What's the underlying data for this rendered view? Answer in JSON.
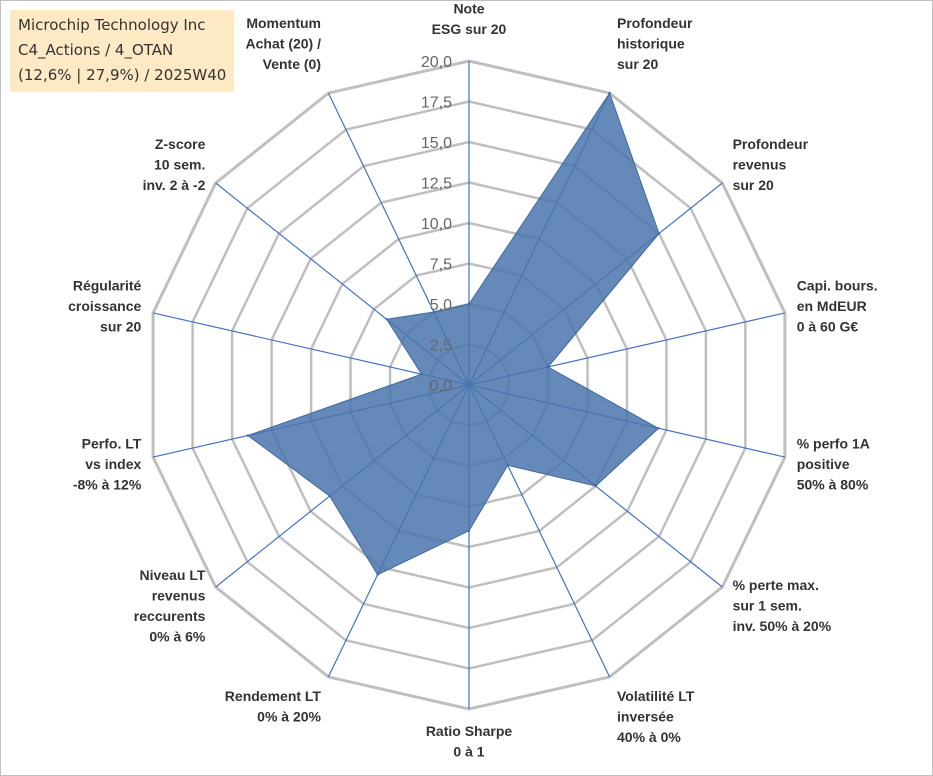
{
  "info": {
    "line1": "Microchip Technology Inc",
    "line2": "C4_Actions / 4_OTAN",
    "line3": "(12,6% | 27,9%) / 2025W40"
  },
  "chart_data": {
    "type": "radar",
    "title": "",
    "rmin": 0,
    "rmax": 20,
    "ticks": [
      0,
      2.5,
      5,
      7.5,
      10,
      12.5,
      15,
      17.5,
      20
    ],
    "tick_labels": [
      "0,0",
      "2,5",
      "5,0",
      "7,5",
      "10,0",
      "12,5",
      "15,0",
      "17,5",
      "20,0"
    ],
    "axes": [
      {
        "label": [
          "Note",
          "ESG sur 20"
        ],
        "value": 5
      },
      {
        "label": [
          "Profondeur",
          "historique",
          "sur 20"
        ],
        "value": 20
      },
      {
        "label": [
          "Profondeur",
          "revenus",
          "sur 20"
        ],
        "value": 15
      },
      {
        "label": [
          "Capi. bours.",
          "en MdEUR",
          "0 à 60 G€"
        ],
        "value": 5
      },
      {
        "label": [
          "% perfo 1A",
          "positive",
          "50% à 80%"
        ],
        "value": 12
      },
      {
        "label": [
          "% perte max.",
          "sur 1 sem.",
          "inv. 50% à 20%"
        ],
        "value": 10
      },
      {
        "label": [
          "Volatilité LT",
          "inversée",
          "40% à 0%"
        ],
        "value": 5.5
      },
      {
        "label": [
          "Ratio Sharpe",
          "0 à 1"
        ],
        "value": 9
      },
      {
        "label": [
          "Rendement LT",
          "0% à 20%"
        ],
        "value": 13
      },
      {
        "label": [
          "Niveau LT",
          "revenus",
          "reccurents",
          "0% à 6%"
        ],
        "value": 11
      },
      {
        "label": [
          "Perfo. LT",
          "vs index",
          "-8% à 12%"
        ],
        "value": 14
      },
      {
        "label": [
          "Régularité",
          "croissance",
          "sur 20"
        ],
        "value": 3
      },
      {
        "label": [
          "Z-score",
          "10 sem.",
          "inv. 2 à -2"
        ],
        "value": 6.5
      },
      {
        "label": [
          "Momentum",
          "Achat (20) /",
          "Vente (0)"
        ],
        "value": 5
      }
    ],
    "series": [
      {
        "name": "",
        "color": "#4a74ab"
      }
    ],
    "grid_color": "#bfbfbf",
    "spoke_color": "#4472c4"
  }
}
